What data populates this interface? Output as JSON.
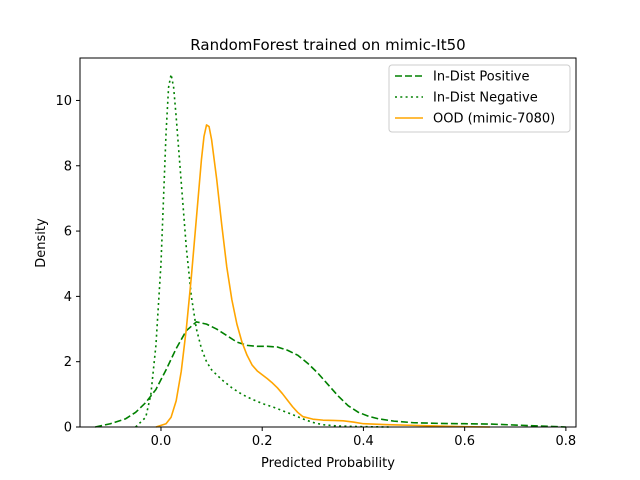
{
  "chart_data": {
    "type": "line",
    "title": "RandomForest trained on mimic-It50",
    "xlabel": "Predicted Probability",
    "ylabel": "Density",
    "xlim": [
      -0.16,
      0.82
    ],
    "ylim": [
      0,
      11.3
    ],
    "xticks": [
      0.0,
      0.2,
      0.4,
      0.6,
      0.8
    ],
    "xtick_labels": [
      "0.0",
      "0.2",
      "0.4",
      "0.6",
      "0.8"
    ],
    "yticks": [
      0,
      2,
      4,
      6,
      8,
      10
    ],
    "ytick_labels": [
      "0",
      "2",
      "4",
      "6",
      "8",
      "10"
    ],
    "grid": false,
    "legend_position": "top-right",
    "series": [
      {
        "name": "In-Dist Positive",
        "color": "#008000",
        "style": "dashed",
        "points": [
          [
            -0.13,
            0.0
          ],
          [
            -0.1,
            0.1
          ],
          [
            -0.07,
            0.25
          ],
          [
            -0.05,
            0.45
          ],
          [
            -0.03,
            0.75
          ],
          [
            -0.01,
            1.15
          ],
          [
            0.01,
            1.75
          ],
          [
            0.03,
            2.4
          ],
          [
            0.05,
            2.95
          ],
          [
            0.07,
            3.22
          ],
          [
            0.09,
            3.15
          ],
          [
            0.11,
            3.0
          ],
          [
            0.13,
            2.8
          ],
          [
            0.15,
            2.6
          ],
          [
            0.17,
            2.5
          ],
          [
            0.19,
            2.47
          ],
          [
            0.21,
            2.47
          ],
          [
            0.23,
            2.45
          ],
          [
            0.25,
            2.35
          ],
          [
            0.27,
            2.2
          ],
          [
            0.29,
            1.95
          ],
          [
            0.31,
            1.65
          ],
          [
            0.33,
            1.3
          ],
          [
            0.35,
            0.95
          ],
          [
            0.37,
            0.65
          ],
          [
            0.39,
            0.45
          ],
          [
            0.41,
            0.33
          ],
          [
            0.43,
            0.25
          ],
          [
            0.46,
            0.18
          ],
          [
            0.5,
            0.13
          ],
          [
            0.55,
            0.11
          ],
          [
            0.6,
            0.1
          ],
          [
            0.65,
            0.09
          ],
          [
            0.7,
            0.06
          ],
          [
            0.75,
            0.03
          ],
          [
            0.8,
            0.0
          ]
        ]
      },
      {
        "name": "In-Dist Negative",
        "color": "#008000",
        "style": "dotted",
        "points": [
          [
            -0.05,
            0.0
          ],
          [
            -0.03,
            0.3
          ],
          [
            -0.02,
            1.0
          ],
          [
            -0.01,
            2.5
          ],
          [
            0.0,
            5.0
          ],
          [
            0.005,
            7.0
          ],
          [
            0.01,
            9.0
          ],
          [
            0.015,
            10.4
          ],
          [
            0.02,
            10.8
          ],
          [
            0.025,
            10.4
          ],
          [
            0.03,
            9.5
          ],
          [
            0.04,
            7.5
          ],
          [
            0.05,
            5.5
          ],
          [
            0.06,
            4.0
          ],
          [
            0.07,
            3.0
          ],
          [
            0.08,
            2.4
          ],
          [
            0.09,
            2.0
          ],
          [
            0.1,
            1.75
          ],
          [
            0.12,
            1.45
          ],
          [
            0.14,
            1.2
          ],
          [
            0.16,
            1.0
          ],
          [
            0.18,
            0.85
          ],
          [
            0.2,
            0.72
          ],
          [
            0.22,
            0.62
          ],
          [
            0.24,
            0.5
          ],
          [
            0.26,
            0.38
          ],
          [
            0.28,
            0.25
          ],
          [
            0.3,
            0.14
          ],
          [
            0.32,
            0.07
          ],
          [
            0.35,
            0.03
          ],
          [
            0.4,
            0.01
          ],
          [
            0.45,
            0.0
          ]
        ]
      },
      {
        "name": "OOD (mimic-7080)",
        "color": "#FFA500",
        "style": "solid",
        "points": [
          [
            -0.01,
            0.0
          ],
          [
            0.01,
            0.1
          ],
          [
            0.02,
            0.3
          ],
          [
            0.03,
            0.8
          ],
          [
            0.04,
            1.7
          ],
          [
            0.05,
            3.0
          ],
          [
            0.06,
            4.6
          ],
          [
            0.07,
            6.4
          ],
          [
            0.08,
            8.2
          ],
          [
            0.085,
            8.9
          ],
          [
            0.09,
            9.25
          ],
          [
            0.095,
            9.2
          ],
          [
            0.1,
            8.8
          ],
          [
            0.11,
            7.6
          ],
          [
            0.12,
            6.2
          ],
          [
            0.13,
            4.9
          ],
          [
            0.14,
            3.9
          ],
          [
            0.15,
            3.15
          ],
          [
            0.16,
            2.6
          ],
          [
            0.17,
            2.2
          ],
          [
            0.18,
            1.9
          ],
          [
            0.19,
            1.72
          ],
          [
            0.2,
            1.6
          ],
          [
            0.21,
            1.48
          ],
          [
            0.22,
            1.35
          ],
          [
            0.23,
            1.2
          ],
          [
            0.24,
            1.02
          ],
          [
            0.25,
            0.82
          ],
          [
            0.26,
            0.62
          ],
          [
            0.27,
            0.45
          ],
          [
            0.28,
            0.32
          ],
          [
            0.3,
            0.24
          ],
          [
            0.32,
            0.21
          ],
          [
            0.34,
            0.2
          ],
          [
            0.36,
            0.19
          ],
          [
            0.38,
            0.15
          ],
          [
            0.4,
            0.1
          ],
          [
            0.45,
            0.07
          ],
          [
            0.5,
            0.05
          ],
          [
            0.55,
            0.03
          ],
          [
            0.6,
            0.01
          ],
          [
            0.65,
            0.0
          ]
        ]
      }
    ]
  }
}
